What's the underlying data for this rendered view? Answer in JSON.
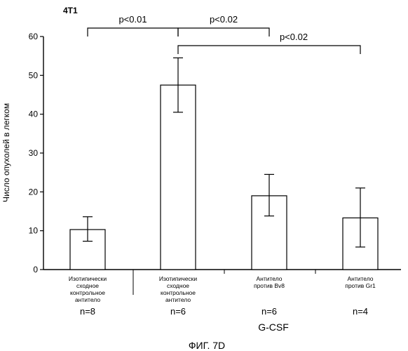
{
  "panel_label": "4T1",
  "caption": "ФИГ. 7D",
  "group_label": "G-CSF",
  "chart_data": {
    "type": "bar",
    "title": "",
    "ylabel": "Число опухолей в легком",
    "xlabel": "",
    "ylim": [
      0,
      60
    ],
    "yticks": [
      0,
      10,
      20,
      30,
      40,
      50,
      60
    ],
    "grid": false,
    "categories": [
      "Изотипически\nсходное\nконтрольное\nантитело",
      "Изотипически\nсходное\nконтрольное\nантитело",
      "Антитело\nпротив Bv8",
      "Антитело\nпротив Gr1"
    ],
    "n_labels": [
      "n=8",
      "n=6",
      "n=6",
      "n=4"
    ],
    "values": [
      10.3,
      47.5,
      19.0,
      13.3
    ],
    "error_low": [
      7.3,
      40.5,
      13.8,
      5.8
    ],
    "error_high": [
      13.6,
      54.5,
      24.5,
      21.0
    ],
    "significance": [
      {
        "from": 0,
        "to": 1,
        "label": "p<0.01"
      },
      {
        "from": 1,
        "to": 2,
        "label": "p<0.02"
      },
      {
        "from": 1,
        "to": 3,
        "label": "p<0.02"
      }
    ]
  }
}
